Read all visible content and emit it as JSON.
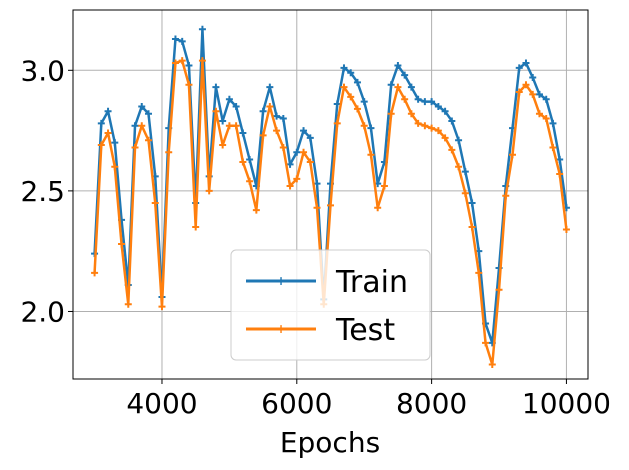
{
  "chart_data": {
    "type": "line",
    "xlabel": "Epochs",
    "ylabel": "",
    "xlim": [
      2680,
      10320
    ],
    "ylim": [
      1.72,
      3.25
    ],
    "xticks": [
      4000,
      6000,
      8000,
      10000
    ],
    "xtick_labels": [
      "4000",
      "6000",
      "8000",
      "10000"
    ],
    "yticks": [
      2.0,
      2.5,
      3.0
    ],
    "ytick_labels": [
      "2.0",
      "2.5",
      "3.0"
    ],
    "grid": true,
    "legend_position": "lower-center",
    "x": [
      3000,
      3100,
      3200,
      3300,
      3400,
      3500,
      3600,
      3700,
      3800,
      3900,
      4000,
      4100,
      4200,
      4300,
      4400,
      4500,
      4600,
      4700,
      4800,
      4900,
      5000,
      5100,
      5200,
      5300,
      5400,
      5500,
      5600,
      5700,
      5800,
      5900,
      6000,
      6100,
      6200,
      6300,
      6400,
      6500,
      6600,
      6700,
      6800,
      6900,
      7000,
      7100,
      7200,
      7300,
      7400,
      7500,
      7600,
      7700,
      7800,
      7900,
      8000,
      8100,
      8200,
      8300,
      8400,
      8500,
      8600,
      8700,
      8800,
      8900,
      9000,
      9100,
      9200,
      9300,
      9400,
      9500,
      9600,
      9700,
      9800,
      9900,
      10000
    ],
    "series": [
      {
        "name": "Train",
        "color": "#1f77b4",
        "values": [
          2.24,
          2.78,
          2.83,
          2.7,
          2.38,
          2.11,
          2.77,
          2.85,
          2.82,
          2.56,
          2.06,
          2.76,
          3.13,
          3.12,
          3.02,
          2.45,
          3.17,
          2.56,
          2.93,
          2.79,
          2.88,
          2.85,
          2.74,
          2.63,
          2.52,
          2.83,
          2.93,
          2.81,
          2.8,
          2.61,
          2.66,
          2.75,
          2.72,
          2.53,
          2.05,
          2.53,
          2.86,
          3.01,
          2.99,
          2.95,
          2.87,
          2.76,
          2.53,
          2.62,
          2.94,
          3.02,
          2.98,
          2.93,
          2.88,
          2.87,
          2.87,
          2.85,
          2.83,
          2.79,
          2.71,
          2.58,
          2.45,
          2.25,
          1.95,
          1.87,
          2.18,
          2.52,
          2.76,
          3.01,
          3.03,
          2.97,
          2.9,
          2.88,
          2.78,
          2.63,
          2.43
        ]
      },
      {
        "name": "Test",
        "color": "#ff7f0e",
        "values": [
          2.16,
          2.69,
          2.74,
          2.6,
          2.28,
          2.03,
          2.68,
          2.77,
          2.71,
          2.45,
          2.02,
          2.66,
          3.03,
          3.04,
          2.94,
          2.35,
          3.04,
          2.5,
          2.83,
          2.69,
          2.77,
          2.77,
          2.62,
          2.54,
          2.42,
          2.73,
          2.85,
          2.75,
          2.68,
          2.52,
          2.55,
          2.66,
          2.62,
          2.43,
          2.03,
          2.44,
          2.78,
          2.93,
          2.89,
          2.84,
          2.77,
          2.65,
          2.43,
          2.52,
          2.82,
          2.93,
          2.88,
          2.82,
          2.78,
          2.77,
          2.76,
          2.75,
          2.72,
          2.67,
          2.6,
          2.49,
          2.35,
          2.16,
          1.87,
          1.78,
          2.09,
          2.48,
          2.65,
          2.91,
          2.94,
          2.9,
          2.82,
          2.8,
          2.68,
          2.57,
          2.34
        ]
      }
    ]
  }
}
